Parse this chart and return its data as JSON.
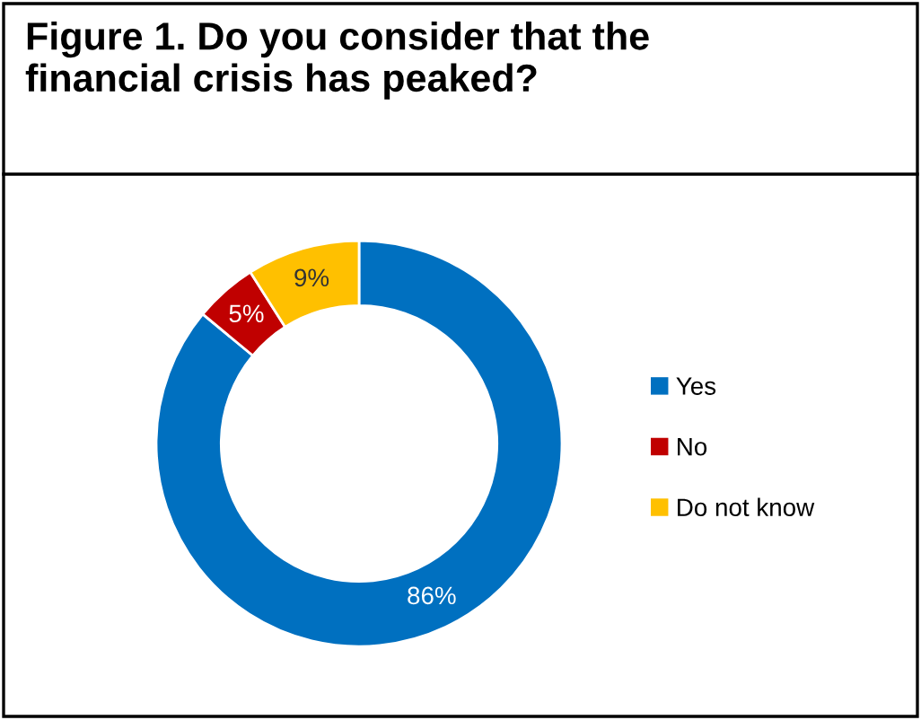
{
  "chart_data": {
    "type": "donut",
    "title": "Figure 1. Do you consider that the\nfinancial crisis has peaked?",
    "categories": [
      "Yes",
      "No",
      "Do not know"
    ],
    "values": [
      86,
      5,
      9
    ],
    "colors": [
      "#0070c0",
      "#c00000",
      "#ffc000"
    ],
    "value_labels": [
      "86%",
      "5%",
      "9%"
    ],
    "legend": "right"
  }
}
